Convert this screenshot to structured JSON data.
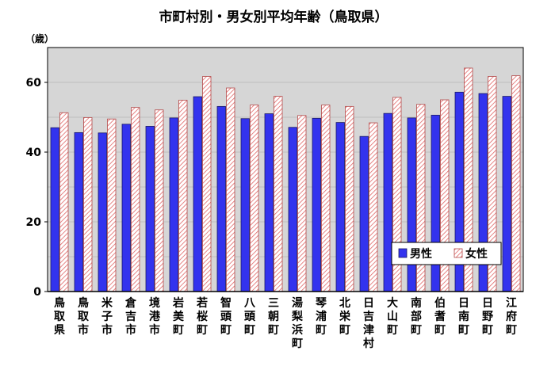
{
  "chart_data": {
    "type": "bar",
    "title": "市町村別・男女別平均年齢（鳥取県）",
    "ylabel": "（歳）",
    "xlabel": "",
    "ylim": [
      0,
      70
    ],
    "yticks": [
      0,
      20,
      40,
      60
    ],
    "grid": true,
    "legend_position": "bottom-right",
    "categories": [
      "鳥取県",
      "鳥取市",
      "米子市",
      "倉吉市",
      "境港市",
      "岩美町",
      "若桜町",
      "智頭町",
      "八頭町",
      "三朝町",
      "湯梨浜町",
      "琴浦町",
      "北栄町",
      "日吉津村",
      "大山町",
      "南部町",
      "伯耆町",
      "日南町",
      "日野町",
      "江府町"
    ],
    "series": [
      {
        "name": "男性",
        "color": "#3333ee",
        "values": [
          47.0,
          45.6,
          45.5,
          48.0,
          47.4,
          49.8,
          55.9,
          53.1,
          49.6,
          51.0,
          47.1,
          49.7,
          48.5,
          44.5,
          51.1,
          49.8,
          50.6,
          57.2,
          56.8,
          56.0
        ]
      },
      {
        "name": "女性",
        "color": "#e87070",
        "values": [
          51.3,
          49.9,
          49.5,
          52.8,
          52.1,
          54.9,
          61.7,
          58.4,
          53.5,
          56.0,
          50.5,
          53.5,
          53.1,
          48.4,
          55.7,
          53.7,
          55.0,
          64.1,
          61.7,
          61.9
        ]
      }
    ]
  }
}
